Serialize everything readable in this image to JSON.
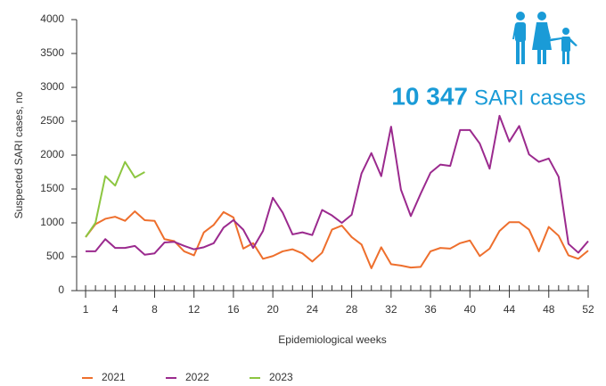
{
  "chart_data": {
    "type": "line",
    "y_label": "Suspected SARI cases, no",
    "x_label": "Epidemiological weeks",
    "annotation_value": "10 347",
    "annotation_text": "SARI cases",
    "x": [
      1,
      2,
      3,
      4,
      5,
      6,
      7,
      8,
      9,
      10,
      11,
      12,
      13,
      14,
      15,
      16,
      17,
      18,
      19,
      20,
      21,
      22,
      23,
      24,
      25,
      26,
      27,
      28,
      29,
      30,
      31,
      32,
      33,
      34,
      35,
      36,
      37,
      38,
      39,
      40,
      41,
      42,
      43,
      44,
      45,
      46,
      47,
      48,
      49,
      50,
      51,
      52
    ],
    "xlim": [
      0,
      52
    ],
    "xticks": [
      1,
      4,
      8,
      12,
      16,
      20,
      24,
      28,
      32,
      36,
      40,
      44,
      48,
      52
    ],
    "ylim": [
      0,
      4000
    ],
    "yticks": [
      0,
      500,
      1000,
      1500,
      2000,
      2500,
      3000,
      3500,
      4000
    ],
    "grid": false,
    "series": [
      {
        "name": "2021",
        "color": "#ee6f2d",
        "values": [
          790,
          980,
          1060,
          1090,
          1030,
          1170,
          1040,
          1030,
          760,
          730,
          580,
          520,
          860,
          970,
          1160,
          1080,
          620,
          700,
          470,
          510,
          580,
          610,
          550,
          430,
          560,
          900,
          960,
          790,
          680,
          330,
          640,
          390,
          370,
          340,
          350,
          580,
          630,
          620,
          700,
          740,
          510,
          620,
          880,
          1010,
          1010,
          900,
          580,
          940,
          810,
          520,
          470,
          590
        ]
      },
      {
        "name": "2022",
        "color": "#9b2a8e",
        "values": [
          580,
          580,
          760,
          630,
          630,
          660,
          530,
          550,
          710,
          720,
          660,
          610,
          640,
          700,
          930,
          1040,
          900,
          630,
          880,
          1370,
          1150,
          830,
          860,
          820,
          1190,
          1110,
          1000,
          1120,
          1730,
          2030,
          1690,
          2420,
          1490,
          1100,
          1430,
          1740,
          1860,
          1840,
          2370,
          2370,
          2170,
          1800,
          2580,
          2200,
          2430,
          2010,
          1900,
          1950,
          1680,
          690,
          560,
          730
        ]
      },
      {
        "name": "2023",
        "color": "#8cc640",
        "values": [
          790,
          1000,
          1690,
          1550,
          1900,
          1670,
          1750,
          null,
          null,
          null,
          null,
          null,
          null,
          null,
          null,
          null,
          null,
          null,
          null,
          null,
          null,
          null,
          null,
          null,
          null,
          null,
          null,
          null,
          null,
          null,
          null,
          null,
          null,
          null,
          null,
          null,
          null,
          null,
          null,
          null,
          null,
          null,
          null,
          null,
          null,
          null,
          null,
          null,
          null,
          null,
          null,
          null
        ]
      }
    ]
  }
}
